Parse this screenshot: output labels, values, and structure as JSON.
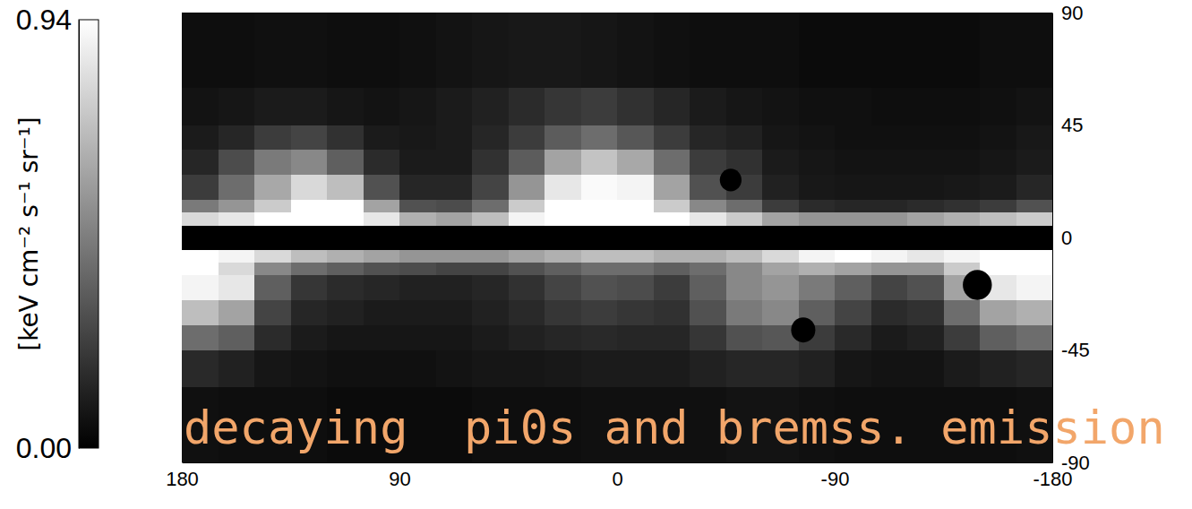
{
  "chart_data": {
    "type": "heatmap",
    "annotation": "decaying  pi0s and bremss. emission",
    "xlim": [
      180,
      -180
    ],
    "ylim": [
      -90,
      90
    ],
    "xticks": [
      180,
      90,
      0,
      -90,
      -180
    ],
    "yticks": [
      90,
      45,
      0,
      -45,
      -90
    ],
    "x_bins": [
      180,
      165,
      150,
      135,
      120,
      105,
      90,
      75,
      60,
      45,
      30,
      15,
      0,
      -15,
      -30,
      -45,
      -60,
      -75,
      -90,
      -105,
      -120,
      -135,
      -150,
      -165,
      -180
    ],
    "y_bins": [
      90,
      60,
      45,
      35,
      25,
      15,
      10,
      5,
      -5,
      -10,
      -15,
      -25,
      -35,
      -45,
      -60,
      -90
    ],
    "values": [
      [
        0.05,
        0.05,
        0.06,
        0.06,
        0.05,
        0.05,
        0.06,
        0.07,
        0.08,
        0.09,
        0.09,
        0.08,
        0.07,
        0.06,
        0.05,
        0.05,
        0.05,
        0.04,
        0.04,
        0.04,
        0.04,
        0.04,
        0.05,
        0.05
      ],
      [
        0.07,
        0.08,
        0.1,
        0.1,
        0.08,
        0.07,
        0.08,
        0.1,
        0.12,
        0.16,
        0.2,
        0.22,
        0.18,
        0.14,
        0.1,
        0.08,
        0.07,
        0.06,
        0.06,
        0.05,
        0.05,
        0.05,
        0.06,
        0.07
      ],
      [
        0.1,
        0.14,
        0.22,
        0.25,
        0.18,
        0.1,
        0.09,
        0.1,
        0.14,
        0.22,
        0.34,
        0.4,
        0.32,
        0.22,
        0.14,
        0.12,
        0.08,
        0.07,
        0.06,
        0.06,
        0.06,
        0.06,
        0.07,
        0.09
      ],
      [
        0.14,
        0.28,
        0.45,
        0.5,
        0.35,
        0.16,
        0.1,
        0.1,
        0.18,
        0.34,
        0.6,
        0.72,
        0.62,
        0.4,
        0.22,
        0.18,
        0.1,
        0.08,
        0.07,
        0.07,
        0.07,
        0.07,
        0.08,
        0.1
      ],
      [
        0.22,
        0.4,
        0.62,
        0.8,
        0.7,
        0.3,
        0.14,
        0.14,
        0.25,
        0.55,
        0.85,
        0.92,
        0.9,
        0.6,
        0.3,
        0.22,
        0.12,
        0.09,
        0.08,
        0.08,
        0.08,
        0.09,
        0.1,
        0.14
      ],
      [
        0.45,
        0.55,
        0.75,
        0.94,
        0.94,
        0.6,
        0.3,
        0.28,
        0.4,
        0.75,
        0.94,
        0.94,
        0.94,
        0.75,
        0.5,
        0.4,
        0.22,
        0.16,
        0.14,
        0.14,
        0.16,
        0.18,
        0.22,
        0.3
      ],
      [
        0.8,
        0.85,
        0.94,
        0.94,
        0.94,
        0.85,
        0.65,
        0.6,
        0.7,
        0.9,
        0.94,
        0.94,
        0.94,
        0.94,
        0.85,
        0.75,
        0.6,
        0.55,
        0.55,
        0.55,
        0.6,
        0.65,
        0.7,
        0.75
      ],
      [
        null,
        null,
        null,
        null,
        null,
        null,
        null,
        null,
        null,
        null,
        null,
        null,
        null,
        null,
        null,
        null,
        null,
        null,
        null,
        null,
        null,
        null,
        null,
        null
      ],
      [
        0.94,
        0.9,
        0.8,
        0.7,
        0.65,
        0.6,
        0.55,
        0.55,
        0.55,
        0.6,
        0.65,
        0.7,
        0.7,
        0.65,
        0.65,
        0.7,
        0.8,
        0.9,
        0.94,
        0.9,
        0.85,
        0.9,
        0.94,
        0.94
      ],
      [
        0.94,
        0.8,
        0.5,
        0.4,
        0.35,
        0.3,
        0.28,
        0.25,
        0.25,
        0.3,
        0.35,
        0.4,
        0.4,
        0.35,
        0.4,
        0.5,
        0.6,
        0.65,
        0.6,
        0.55,
        0.55,
        0.75,
        0.94,
        0.94
      ],
      [
        0.9,
        0.85,
        0.35,
        0.2,
        0.16,
        0.14,
        0.12,
        0.12,
        0.14,
        0.18,
        0.25,
        0.3,
        0.28,
        0.22,
        0.35,
        0.5,
        0.55,
        0.45,
        0.35,
        0.25,
        0.3,
        0.6,
        0.85,
        0.9
      ],
      [
        0.7,
        0.6,
        0.25,
        0.14,
        0.12,
        0.1,
        0.1,
        0.1,
        0.12,
        0.15,
        0.2,
        0.22,
        0.2,
        0.18,
        0.3,
        0.45,
        0.5,
        0.35,
        0.25,
        0.16,
        0.18,
        0.4,
        0.6,
        0.65
      ],
      [
        0.4,
        0.35,
        0.16,
        0.1,
        0.08,
        0.08,
        0.08,
        0.08,
        0.1,
        0.12,
        0.14,
        0.15,
        0.14,
        0.14,
        0.2,
        0.3,
        0.32,
        0.22,
        0.15,
        0.1,
        0.12,
        0.22,
        0.35,
        0.4
      ],
      [
        0.15,
        0.12,
        0.08,
        0.07,
        0.06,
        0.06,
        0.06,
        0.07,
        0.08,
        0.08,
        0.09,
        0.1,
        0.1,
        0.1,
        0.12,
        0.14,
        0.14,
        0.12,
        0.08,
        0.07,
        0.07,
        0.1,
        0.12,
        0.14
      ],
      [
        0.06,
        0.05,
        0.05,
        0.05,
        0.04,
        0.04,
        0.04,
        0.04,
        0.05,
        0.05,
        0.05,
        0.06,
        0.06,
        0.06,
        0.06,
        0.07,
        0.07,
        0.06,
        0.05,
        0.05,
        0.05,
        0.05,
        0.05,
        0.06
      ]
    ],
    "masked_sources": {
      "l": [
        -47,
        -77,
        -149
      ],
      "b": [
        23,
        -37,
        -19
      ],
      "radius": [
        4.5,
        5,
        6
      ]
    },
    "colorbar": {
      "label": "[keV cm⁻² s⁻¹ sr⁻¹]",
      "range": [
        0,
        0.94
      ],
      "ticks": [
        {
          "value": 0,
          "label": "0.00"
        },
        {
          "value": 0.94,
          "label": "0.94"
        }
      ]
    }
  }
}
